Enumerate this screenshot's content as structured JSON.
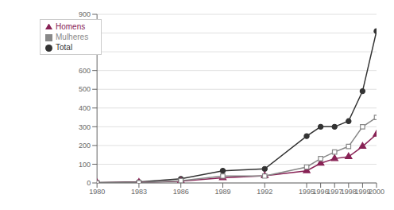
{
  "chart_data": {
    "type": "line",
    "x": [
      1980,
      1983,
      1986,
      1989,
      1992,
      1995,
      1996,
      1997,
      1998,
      1999,
      2000
    ],
    "series": [
      {
        "name": "Total",
        "color": "#333333",
        "marker": "circle",
        "values": [
          2,
          5,
          22,
          65,
          75,
          250,
          300,
          300,
          330,
          490,
          810
        ]
      },
      {
        "name": "Homens",
        "color": "#882255",
        "marker": "triangle",
        "values": [
          1,
          3,
          10,
          28,
          38,
          65,
          105,
          130,
          140,
          195,
          260
        ]
      },
      {
        "name": "Mulheres",
        "color": "#888888",
        "marker": "square",
        "values": [
          1,
          2,
          12,
          37,
          37,
          85,
          130,
          165,
          195,
          300,
          350
        ]
      }
    ],
    "xlim": [
      1980,
      2000
    ],
    "xticks": [
      1980,
      1983,
      1986,
      1989,
      1992,
      1995,
      1996,
      1997,
      1998,
      1999,
      2000
    ],
    "ylim": [
      0,
      900
    ],
    "yticks": [
      0,
      100,
      200,
      300,
      400,
      500,
      600,
      700,
      800,
      900
    ],
    "grid": true,
    "legend": "upper left"
  }
}
